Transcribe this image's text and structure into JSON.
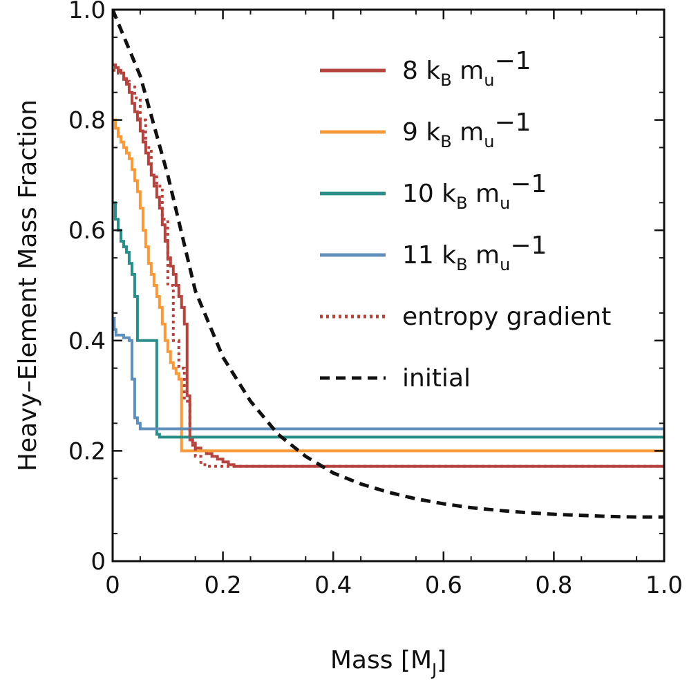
{
  "chart_data": {
    "type": "line",
    "title": "",
    "xlabel": {
      "main": "Mass [M",
      "sub": "J",
      "close": "]"
    },
    "ylabel": "Heavy–Element Mass Fraction",
    "xlim": [
      0,
      1.0
    ],
    "ylim": [
      0,
      1.0
    ],
    "xticks": [
      0,
      0.2,
      0.4,
      0.6,
      0.8,
      1.0
    ],
    "xtick_labels": [
      "0",
      "0.2",
      "0.4",
      "0.6",
      "0.8",
      "1.0"
    ],
    "yticks": [
      0,
      0.2,
      0.4,
      0.6,
      0.8,
      1.0
    ],
    "ytick_labels": [
      "0",
      "0.2",
      "0.4",
      "0.6",
      "0.8",
      "1.0"
    ],
    "grid": false,
    "legend_position": "top-right",
    "series": [
      {
        "name": "8 kB mu−1",
        "legend": {
          "num": "8",
          "k": "k",
          "ksub": "B",
          "m": "m",
          "msub": "u",
          "exp": "−1"
        },
        "color": "#b5443f",
        "style": "solid",
        "x": [
          0,
          0.005,
          0.01,
          0.015,
          0.02,
          0.025,
          0.03,
          0.035,
          0.04,
          0.045,
          0.05,
          0.055,
          0.06,
          0.065,
          0.07,
          0.075,
          0.08,
          0.085,
          0.09,
          0.095,
          0.1,
          0.105,
          0.11,
          0.115,
          0.12,
          0.125,
          0.13,
          0.135,
          0.14,
          0.145,
          0.15,
          0.16,
          0.17,
          0.18,
          0.19,
          0.2,
          0.21,
          0.22,
          0.23,
          0.4,
          0.6,
          0.8,
          1.0
        ],
        "y": [
          0.9,
          0.895,
          0.89,
          0.885,
          0.875,
          0.865,
          0.85,
          0.83,
          0.815,
          0.8,
          0.78,
          0.76,
          0.74,
          0.72,
          0.7,
          0.68,
          0.66,
          0.64,
          0.61,
          0.58,
          0.55,
          0.535,
          0.52,
          0.5,
          0.48,
          0.46,
          0.43,
          0.3,
          0.22,
          0.21,
          0.205,
          0.2,
          0.195,
          0.19,
          0.185,
          0.18,
          0.175,
          0.172,
          0.172,
          0.172,
          0.172,
          0.172,
          0.172
        ],
        "step": true
      },
      {
        "name": "9 kB mu−1",
        "legend": {
          "num": "9",
          "k": "k",
          "ksub": "B",
          "m": "m",
          "msub": "u",
          "exp": "−1"
        },
        "color": "#f89a3a",
        "style": "solid",
        "x": [
          0,
          0.005,
          0.01,
          0.015,
          0.02,
          0.025,
          0.03,
          0.035,
          0.04,
          0.045,
          0.05,
          0.055,
          0.06,
          0.065,
          0.07,
          0.075,
          0.08,
          0.085,
          0.09,
          0.095,
          0.1,
          0.105,
          0.11,
          0.115,
          0.12,
          0.125,
          0.4,
          0.6,
          0.8,
          1.0
        ],
        "y": [
          0.8,
          0.785,
          0.77,
          0.76,
          0.75,
          0.74,
          0.73,
          0.71,
          0.69,
          0.67,
          0.64,
          0.6,
          0.57,
          0.54,
          0.52,
          0.5,
          0.48,
          0.46,
          0.43,
          0.4,
          0.38,
          0.36,
          0.35,
          0.34,
          0.33,
          0.2,
          0.2,
          0.2,
          0.2,
          0.2
        ],
        "step": true
      },
      {
        "name": "10 kB mu−1",
        "legend": {
          "num": "10",
          "k": "k",
          "ksub": "B",
          "m": "m",
          "msub": "u",
          "exp": "−1"
        },
        "color": "#2a8f88",
        "style": "solid",
        "x": [
          0,
          0.005,
          0.01,
          0.015,
          0.02,
          0.025,
          0.03,
          0.035,
          0.04,
          0.045,
          0.05,
          0.055,
          0.06,
          0.065,
          0.07,
          0.075,
          0.08,
          0.085,
          0.4,
          0.6,
          0.8,
          1.0
        ],
        "y": [
          0.65,
          0.62,
          0.6,
          0.58,
          0.57,
          0.56,
          0.54,
          0.52,
          0.48,
          0.4,
          0.4,
          0.4,
          0.4,
          0.4,
          0.4,
          0.4,
          0.23,
          0.225,
          0.225,
          0.225,
          0.225,
          0.225
        ],
        "step": true
      },
      {
        "name": "11 kB mu−1",
        "legend": {
          "num": "11",
          "k": "k",
          "ksub": "B",
          "m": "m",
          "msub": "u",
          "exp": "−1"
        },
        "color": "#5f8fba",
        "style": "solid",
        "x": [
          0,
          0.003,
          0.006,
          0.01,
          0.02,
          0.03,
          0.035,
          0.04,
          0.045,
          0.05,
          0.4,
          0.6,
          0.8,
          1.0
        ],
        "y": [
          0.44,
          0.42,
          0.41,
          0.41,
          0.405,
          0.4,
          0.33,
          0.26,
          0.25,
          0.24,
          0.24,
          0.24,
          0.24,
          0.24
        ],
        "step": true
      },
      {
        "name": "entropy gradient",
        "color": "#b5443f",
        "style": "dotted",
        "x": [
          0,
          0.01,
          0.02,
          0.03,
          0.04,
          0.05,
          0.06,
          0.07,
          0.08,
          0.09,
          0.1,
          0.11,
          0.12,
          0.13,
          0.14,
          0.15,
          0.16,
          0.17,
          0.18,
          0.19,
          0.2,
          0.21,
          0.22,
          0.4,
          0.6,
          0.8,
          1.0
        ],
        "y": [
          0.89,
          0.885,
          0.87,
          0.86,
          0.84,
          0.8,
          0.75,
          0.7,
          0.68,
          0.62,
          0.5,
          0.4,
          0.35,
          0.29,
          0.22,
          0.19,
          0.175,
          0.172,
          0.172,
          0.172,
          0.172,
          0.172,
          0.172,
          0.172,
          0.172,
          0.172,
          0.172
        ],
        "step": true
      },
      {
        "name": "initial",
        "color": "#111111",
        "style": "dashed",
        "x": [
          0,
          0.05,
          0.1,
          0.15,
          0.2,
          0.25,
          0.3,
          0.35,
          0.4,
          0.45,
          0.5,
          0.55,
          0.6,
          0.65,
          0.7,
          0.75,
          0.8,
          0.85,
          0.9,
          0.95,
          1.0
        ],
        "y": [
          1.0,
          0.88,
          0.7,
          0.49,
          0.37,
          0.29,
          0.23,
          0.19,
          0.16,
          0.14,
          0.125,
          0.113,
          0.104,
          0.097,
          0.092,
          0.088,
          0.085,
          0.083,
          0.081,
          0.08,
          0.08
        ],
        "step": false
      }
    ]
  }
}
